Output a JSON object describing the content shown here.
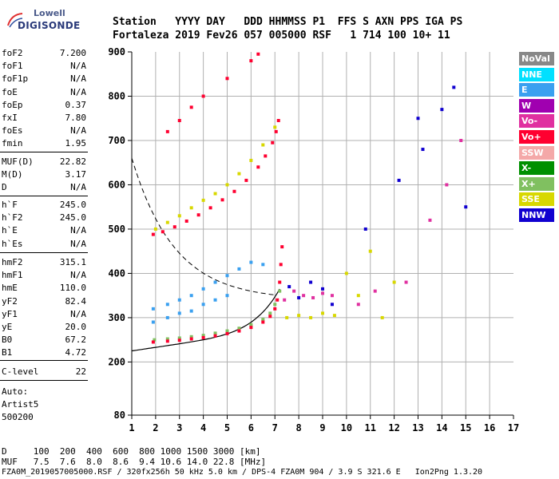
{
  "logo": {
    "line1": "Lowell",
    "line2": "DIGISONDE"
  },
  "header": {
    "line1": "Station   YYYY DAY   DDD HHMMSS P1  FFS S AXN PPS IGA PS",
    "line2": "Fortaleza 2019 Fev26 057 005000 RSF   1 714 100 10+ 11"
  },
  "params_group1": [
    {
      "name": "foF2",
      "value": "7.200"
    },
    {
      "name": "foF1",
      "value": "N/A"
    },
    {
      "name": "foF1p",
      "value": "N/A"
    },
    {
      "name": "foE",
      "value": "N/A"
    },
    {
      "name": "foEp",
      "value": "0.37"
    },
    {
      "name": "fxI",
      "value": "7.80"
    },
    {
      "name": "foEs",
      "value": "N/A"
    },
    {
      "name": "fmin",
      "value": "1.95"
    }
  ],
  "params_group2": [
    {
      "name": "MUF(D)",
      "value": "22.82"
    },
    {
      "name": "M(D)",
      "value": "3.17"
    },
    {
      "name": "D",
      "value": "N/A"
    }
  ],
  "params_group3": [
    {
      "name": "h`F",
      "value": "245.0"
    },
    {
      "name": "h`F2",
      "value": "245.0"
    },
    {
      "name": "h`E",
      "value": "N/A"
    },
    {
      "name": "h`Es",
      "value": "N/A"
    }
  ],
  "params_group4": [
    {
      "name": "hmF2",
      "value": "315.1"
    },
    {
      "name": "hmF1",
      "value": "N/A"
    },
    {
      "name": "hmE",
      "value": "110.0"
    },
    {
      "name": "yF2",
      "value": "82.4"
    },
    {
      "name": "yF1",
      "value": "N/A"
    },
    {
      "name": "yE",
      "value": "20.0"
    },
    {
      "name": "B0",
      "value": "67.2"
    },
    {
      "name": "B1",
      "value": "4.72"
    }
  ],
  "params_group5": [
    {
      "name": "C-level",
      "value": "22"
    }
  ],
  "auto": {
    "line1": "Auto:",
    "line2": "Artist5",
    "line3": "500200"
  },
  "legend": [
    {
      "label": "NoVal",
      "color": "#888888"
    },
    {
      "label": "NNE",
      "color": "#00e0ff"
    },
    {
      "label": "E",
      "color": "#3aa0f0"
    },
    {
      "label": "W",
      "color": "#a000b0"
    },
    {
      "label": "Vo-",
      "color": "#e030a0"
    },
    {
      "label": "Vo+",
      "color": "#ff0030"
    },
    {
      "label": "SSW",
      "color": "#f4a8a8"
    },
    {
      "label": "X-",
      "color": "#009000"
    },
    {
      "label": "X+",
      "color": "#80c060"
    },
    {
      "label": "SSE",
      "color": "#d8d800"
    },
    {
      "label": "NNW",
      "color": "#1000d0"
    }
  ],
  "footer": {
    "line1": "D     100  200  400  600  800 1000 1500 3000 [km]",
    "line2": "MUF   7.5  7.6  8.0  8.6  9.4 10.6 14.0 22.8 [MHz]",
    "line3": "FZA0M_2019057005000.RSF / 320fx256h 50 kHz 5.0 km / DPS-4 FZA0M 904 / 3.9 S 321.6 E   Ion2Png 1.3.20"
  },
  "chart_data": {
    "type": "scatter",
    "title": "",
    "xlabel": "",
    "ylabel": "",
    "xlim": [
      1,
      17
    ],
    "ylim": [
      80,
      900
    ],
    "x_ticks": [
      1,
      2,
      3,
      4,
      5,
      6,
      7,
      8,
      9,
      10,
      11,
      12,
      13,
      14,
      15,
      16,
      17
    ],
    "y_ticks": [
      80,
      200,
      300,
      400,
      500,
      600,
      700,
      800,
      900
    ],
    "grid": true,
    "series": [
      {
        "name": "X+",
        "color": "#80c060",
        "points": [
          [
            1.95,
            250
          ],
          [
            2.5,
            252
          ],
          [
            3.0,
            254
          ],
          [
            3.5,
            257
          ],
          [
            4.0,
            260
          ],
          [
            4.5,
            265
          ],
          [
            5.0,
            270
          ],
          [
            5.5,
            276
          ],
          [
            6.0,
            284
          ],
          [
            6.5,
            296
          ],
          [
            6.8,
            310
          ],
          [
            7.0,
            330
          ],
          [
            7.2,
            360
          ]
        ]
      },
      {
        "name": "Vo+",
        "color": "#ff0030",
        "points": [
          [
            1.9,
            245
          ],
          [
            2.5,
            247
          ],
          [
            3.0,
            249
          ],
          [
            3.5,
            252
          ],
          [
            4.0,
            255
          ],
          [
            4.5,
            259
          ],
          [
            5.0,
            264
          ],
          [
            5.5,
            270
          ],
          [
            6.0,
            278
          ],
          [
            6.5,
            290
          ],
          [
            6.8,
            303
          ],
          [
            7.0,
            320
          ],
          [
            7.1,
            340
          ],
          [
            7.2,
            380
          ],
          [
            7.25,
            420
          ],
          [
            7.3,
            460
          ],
          [
            1.9,
            488
          ],
          [
            2.3,
            494
          ],
          [
            2.8,
            505
          ],
          [
            3.3,
            518
          ],
          [
            3.8,
            532
          ],
          [
            4.3,
            548
          ],
          [
            4.8,
            566
          ],
          [
            5.3,
            585
          ],
          [
            5.8,
            610
          ],
          [
            6.3,
            640
          ],
          [
            6.6,
            665
          ],
          [
            6.9,
            695
          ],
          [
            7.05,
            720
          ],
          [
            7.15,
            745
          ],
          [
            2.5,
            720
          ],
          [
            3.0,
            745
          ],
          [
            3.5,
            775
          ],
          [
            4.0,
            800
          ],
          [
            5.0,
            840
          ],
          [
            6.0,
            880
          ],
          [
            6.3,
            895
          ]
        ]
      },
      {
        "name": "E",
        "color": "#3aa0f0",
        "points": [
          [
            1.9,
            320
          ],
          [
            2.5,
            330
          ],
          [
            3.0,
            340
          ],
          [
            3.5,
            350
          ],
          [
            4.0,
            365
          ],
          [
            4.5,
            380
          ],
          [
            5.0,
            395
          ],
          [
            5.5,
            410
          ],
          [
            6.0,
            425
          ],
          [
            6.5,
            420
          ],
          [
            1.9,
            290
          ],
          [
            2.5,
            300
          ],
          [
            3.0,
            310
          ],
          [
            3.5,
            315
          ],
          [
            4.0,
            330
          ],
          [
            4.5,
            340
          ],
          [
            5.0,
            350
          ]
        ]
      },
      {
        "name": "SSE",
        "color": "#d8d800",
        "points": [
          [
            2.0,
            500
          ],
          [
            2.5,
            515
          ],
          [
            3.0,
            530
          ],
          [
            3.5,
            548
          ],
          [
            4.0,
            565
          ],
          [
            4.5,
            580
          ],
          [
            5.0,
            600
          ],
          [
            5.5,
            625
          ],
          [
            6.0,
            655
          ],
          [
            6.5,
            690
          ],
          [
            7.0,
            730
          ],
          [
            7.5,
            300
          ],
          [
            8.0,
            305
          ],
          [
            8.5,
            300
          ],
          [
            9.0,
            310
          ],
          [
            9.5,
            305
          ],
          [
            10.0,
            400
          ],
          [
            10.5,
            350
          ],
          [
            11.0,
            450
          ],
          [
            11.5,
            300
          ],
          [
            12.0,
            380
          ]
        ]
      },
      {
        "name": "Vo-",
        "color": "#e030a0",
        "points": [
          [
            7.4,
            340
          ],
          [
            7.8,
            360
          ],
          [
            8.2,
            350
          ],
          [
            8.6,
            345
          ],
          [
            9.0,
            355
          ],
          [
            9.4,
            350
          ],
          [
            10.5,
            330
          ],
          [
            11.2,
            360
          ],
          [
            12.5,
            380
          ],
          [
            13.5,
            520
          ],
          [
            14.2,
            600
          ],
          [
            14.8,
            700
          ]
        ]
      },
      {
        "name": "NNW",
        "color": "#1000d0",
        "points": [
          [
            7.6,
            370
          ],
          [
            8.0,
            345
          ],
          [
            8.5,
            380
          ],
          [
            9.0,
            365
          ],
          [
            9.4,
            330
          ],
          [
            10.8,
            500
          ],
          [
            12.2,
            610
          ],
          [
            13.2,
            680
          ],
          [
            14.0,
            770
          ],
          [
            15.0,
            550
          ],
          [
            13.0,
            750
          ],
          [
            14.5,
            820
          ]
        ]
      }
    ]
  }
}
